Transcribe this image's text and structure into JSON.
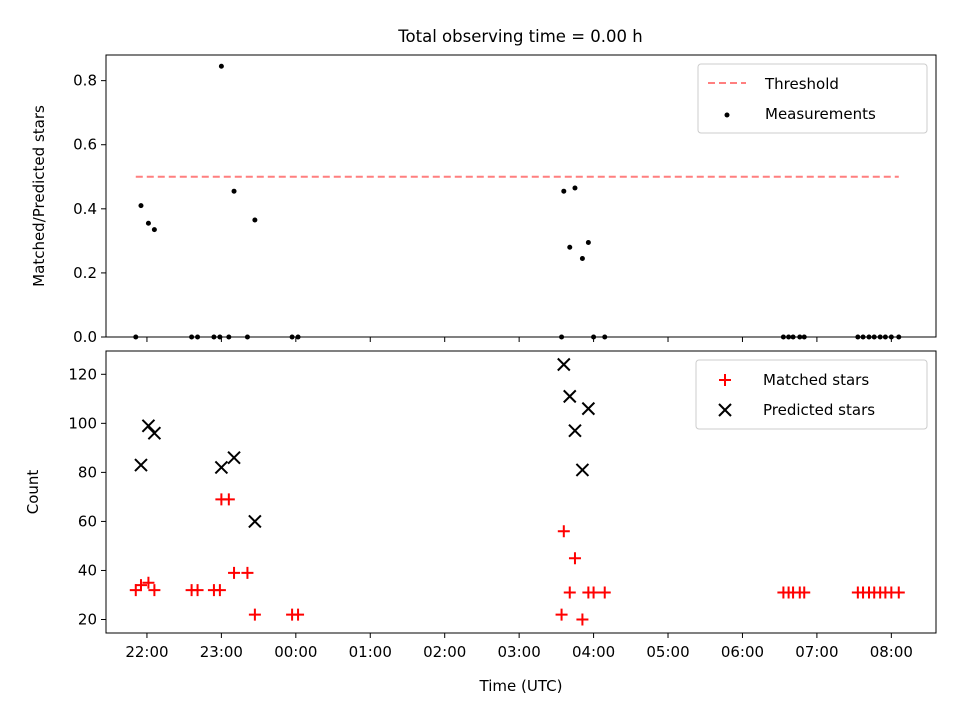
{
  "chart_data": [
    {
      "type": "scatter",
      "title": "Total observing time = 0.00 h",
      "xlabel": "",
      "ylabel": "Matched/Predicted stars",
      "ylim": [
        0,
        0.88
      ],
      "yticks": [
        0.0,
        0.2,
        0.4,
        0.6,
        0.8
      ],
      "ytick_labels": [
        "0.0",
        "0.2",
        "0.4",
        "0.6",
        "0.8"
      ],
      "legend": {
        "placement": "top-right",
        "entries": [
          "Threshold",
          "Measurements"
        ]
      },
      "threshold": {
        "name": "Threshold",
        "y": 0.5,
        "x_start": -0.15,
        "x_end": 10.1,
        "color": "#ff7f7f"
      },
      "series": [
        {
          "name": "Measurements",
          "color": "#000000",
          "points": [
            [
              -0.15,
              0.0
            ],
            [
              -0.08,
              0.41
            ],
            [
              0.02,
              0.355
            ],
            [
              0.1,
              0.335
            ],
            [
              0.6,
              0.0
            ],
            [
              0.68,
              0.0
            ],
            [
              0.9,
              0.0
            ],
            [
              0.98,
              0.0
            ],
            [
              1.0,
              0.845
            ],
            [
              1.1,
              0.0
            ],
            [
              1.17,
              0.455
            ],
            [
              1.35,
              0.0
            ],
            [
              1.45,
              0.365
            ],
            [
              1.95,
              0.0
            ],
            [
              2.03,
              0.0
            ],
            [
              5.57,
              0.0
            ],
            [
              5.6,
              0.455
            ],
            [
              5.68,
              0.28
            ],
            [
              5.75,
              0.465
            ],
            [
              5.85,
              0.245
            ],
            [
              5.93,
              0.295
            ],
            [
              6.0,
              0.0
            ],
            [
              6.15,
              0.0
            ],
            [
              8.55,
              0.0
            ],
            [
              8.62,
              0.0
            ],
            [
              8.68,
              0.0
            ],
            [
              8.77,
              0.0
            ],
            [
              8.83,
              0.0
            ],
            [
              9.55,
              0.0
            ],
            [
              9.62,
              0.0
            ],
            [
              9.7,
              0.0
            ],
            [
              9.77,
              0.0
            ],
            [
              9.85,
              0.0
            ],
            [
              9.92,
              0.0
            ],
            [
              10.0,
              0.0
            ],
            [
              10.1,
              0.0
            ]
          ]
        }
      ]
    },
    {
      "type": "scatter",
      "title": "",
      "xlabel": "Time (UTC)",
      "ylabel": "Count",
      "ylim": [
        14.5,
        129.5
      ],
      "yticks": [
        20,
        40,
        60,
        80,
        100,
        120
      ],
      "ytick_labels": [
        "20",
        "40",
        "60",
        "80",
        "100",
        "120"
      ],
      "xlim": [
        -0.55,
        10.6
      ],
      "xticks": [
        0,
        1,
        2,
        3,
        4,
        5,
        6,
        7,
        8,
        9,
        10
      ],
      "xtick_labels": [
        "22:00",
        "23:00",
        "00:00",
        "01:00",
        "02:00",
        "03:00",
        "04:00",
        "05:00",
        "06:00",
        "07:00",
        "08:00"
      ],
      "legend": {
        "placement": "top-right",
        "entries": [
          "Matched stars",
          "Predicted stars"
        ]
      },
      "series": [
        {
          "name": "Matched stars",
          "marker": "plus",
          "color": "#ff0000",
          "points": [
            [
              -0.15,
              32
            ],
            [
              -0.08,
              34
            ],
            [
              0.02,
              35
            ],
            [
              0.1,
              32
            ],
            [
              0.6,
              32
            ],
            [
              0.68,
              32
            ],
            [
              0.9,
              32
            ],
            [
              0.98,
              32
            ],
            [
              1.0,
              69
            ],
            [
              1.1,
              69
            ],
            [
              1.17,
              39
            ],
            [
              1.35,
              39
            ],
            [
              1.45,
              22
            ],
            [
              1.95,
              22
            ],
            [
              2.03,
              22
            ],
            [
              5.57,
              22
            ],
            [
              5.6,
              56
            ],
            [
              5.68,
              31
            ],
            [
              5.75,
              45
            ],
            [
              5.85,
              20
            ],
            [
              5.93,
              31
            ],
            [
              6.0,
              31
            ],
            [
              6.15,
              31
            ],
            [
              8.55,
              31
            ],
            [
              8.62,
              31
            ],
            [
              8.68,
              31
            ],
            [
              8.77,
              31
            ],
            [
              8.83,
              31
            ],
            [
              9.55,
              31
            ],
            [
              9.62,
              31
            ],
            [
              9.7,
              31
            ],
            [
              9.77,
              31
            ],
            [
              9.85,
              31
            ],
            [
              9.92,
              31
            ],
            [
              10.0,
              31
            ],
            [
              10.1,
              31
            ]
          ]
        },
        {
          "name": "Predicted stars",
          "marker": "x",
          "color": "#000000",
          "points": [
            [
              -0.08,
              83
            ],
            [
              0.02,
              99
            ],
            [
              0.1,
              96
            ],
            [
              1.0,
              82
            ],
            [
              1.17,
              86
            ],
            [
              1.45,
              60
            ],
            [
              5.6,
              124
            ],
            [
              5.68,
              111
            ],
            [
              5.75,
              97
            ],
            [
              5.85,
              81
            ],
            [
              5.93,
              106
            ]
          ]
        }
      ]
    }
  ]
}
